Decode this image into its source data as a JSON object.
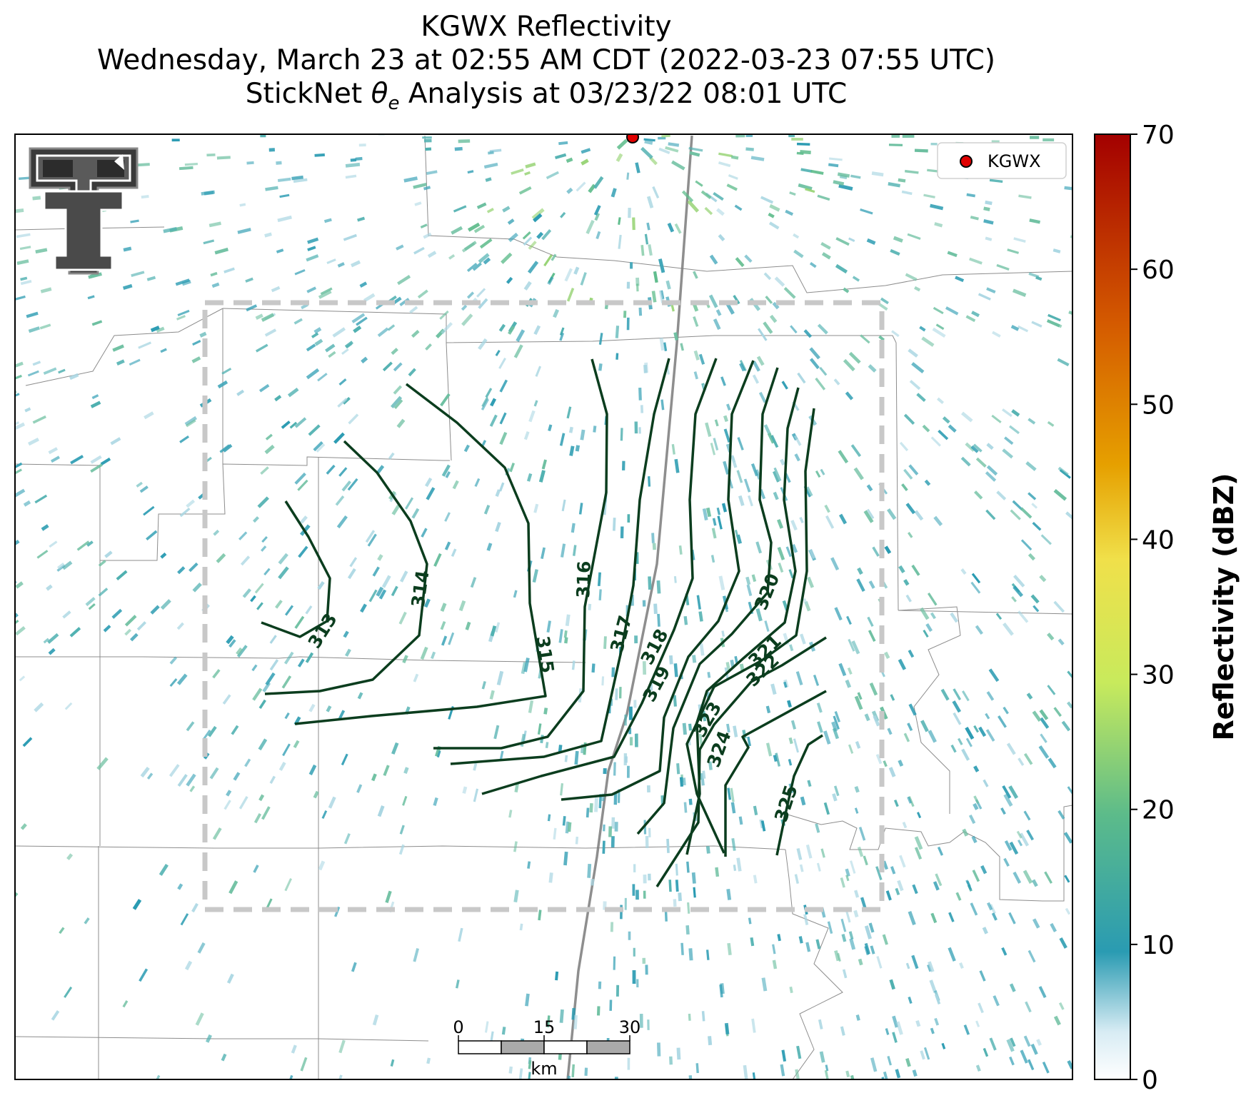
{
  "title": {
    "line1": "KGWX Reflectivity",
    "line2": "Wednesday, March 23 at 02:55 AM CDT (2022-03-23 07:55 UTC)",
    "line3_prefix": "StickNet ",
    "line3_theta": "θ",
    "line3_sub": "e",
    "line3_suffix": " Analysis at 03/23/22 08:01 UTC"
  },
  "legend": {
    "label": "KGWX",
    "marker_color": "#e00000"
  },
  "colorbar": {
    "label": "Reflectivity (dBZ)",
    "ticks": [
      "0",
      "10",
      "20",
      "30",
      "40",
      "50",
      "60",
      "70"
    ],
    "range": [
      0,
      70
    ],
    "stops": [
      "#ffffff",
      "#d8ecf4",
      "#2a9bb2",
      "#5cbb8a",
      "#c8ea5c",
      "#f0e04a",
      "#e6a000",
      "#d45a00",
      "#a30000"
    ]
  },
  "contours": [
    {
      "label": "313"
    },
    {
      "label": "314"
    },
    {
      "label": "315"
    },
    {
      "label": "316"
    },
    {
      "label": "317"
    },
    {
      "label": "318"
    },
    {
      "label": "319"
    },
    {
      "label": "320"
    },
    {
      "label": "321"
    },
    {
      "label": "322"
    },
    {
      "label": "323"
    },
    {
      "label": "324"
    },
    {
      "label": "325"
    }
  ],
  "scalebar": {
    "ticks": [
      "0",
      "15",
      "30"
    ],
    "unit": "km"
  },
  "colors": {
    "contour": "#0b3d1e",
    "analysis_box": "#c8c8c8",
    "radar_echo": "#2a9bb2"
  }
}
